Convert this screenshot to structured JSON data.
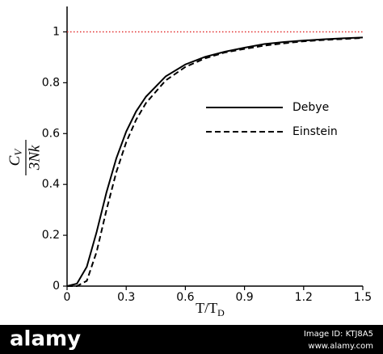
{
  "chart_data": {
    "type": "line",
    "x_label": "T/T",
    "x_label_sub": "D",
    "y_label_numerator": "C",
    "y_label_sub": "V",
    "y_label_denominator": "3Nk",
    "x": [
      0,
      0.05,
      0.1,
      0.15,
      0.2,
      0.25,
      0.3,
      0.35,
      0.4,
      0.5,
      0.6,
      0.7,
      0.8,
      0.9,
      1.0,
      1.1,
      1.2,
      1.3,
      1.4,
      1.5
    ],
    "series": [
      {
        "name": "Debye",
        "color": "#000000",
        "dash": "solid",
        "values": [
          0,
          0.0097,
          0.0758,
          0.213,
          0.369,
          0.503,
          0.608,
          0.687,
          0.745,
          0.825,
          0.872,
          0.902,
          0.922,
          0.938,
          0.952,
          0.96,
          0.966,
          0.971,
          0.975,
          0.978
        ]
      },
      {
        "name": "Einstein",
        "color": "#000000",
        "dash": "dashed",
        "values": [
          0,
          0,
          0.0205,
          0.135,
          0.3,
          0.449,
          0.566,
          0.654,
          0.72,
          0.809,
          0.862,
          0.896,
          0.919,
          0.933,
          0.946,
          0.955,
          0.963,
          0.968,
          0.972,
          0.976
        ]
      }
    ],
    "reference_line": {
      "value": 1,
      "color": "#e02020",
      "style": "dotted"
    },
    "xlim": [
      0,
      1.5
    ],
    "xticks": [
      0,
      0.3,
      0.6,
      0.9,
      1.2,
      1.5
    ],
    "ylim": [
      0,
      1.1
    ],
    "yticks": [
      0,
      0.2,
      0.4,
      0.6,
      0.8,
      1
    ],
    "legend": "right",
    "grid": false
  },
  "watermark": {
    "brand": "alamy",
    "image_id": "Image ID: KTJ8A5",
    "url": "www.alamy.com"
  }
}
